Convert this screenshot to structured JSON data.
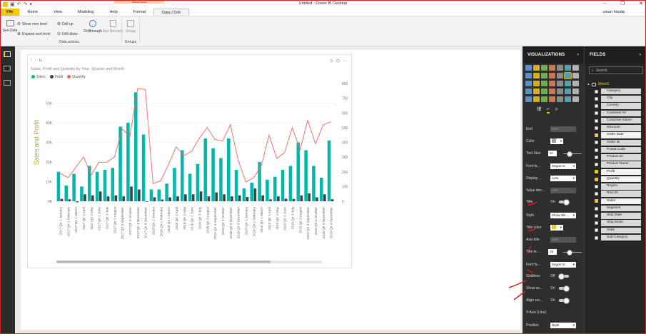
{
  "window": {
    "title": "Untitled - Power BI Desktop",
    "context_tab_group": "Visual tools",
    "user": "uman hooda",
    "controls": [
      "–",
      "❐",
      "✕"
    ]
  },
  "menu": {
    "tabs": [
      {
        "label": "File"
      },
      {
        "label": "Home"
      },
      {
        "label": "View"
      },
      {
        "label": "Modeling"
      },
      {
        "label": "Help"
      },
      {
        "label": "Format"
      },
      {
        "label": "Data / Drill"
      }
    ]
  },
  "ribbon": {
    "see_data": "See Data",
    "show_next_level": "Show next level",
    "expand_next_level": "Expand next level",
    "drill_up": "Drill up",
    "drill_down": "Drill down",
    "drillthrough": "Drillthrough",
    "see_records": "See Records",
    "group": "Group",
    "data_actions_label": "Data actions",
    "groups_label": "Groups"
  },
  "visual": {
    "title": "Sales, Profit and Quantity by Year, Quarter and Month",
    "legend": [
      {
        "name": "Sales",
        "color": "#01b8aa"
      },
      {
        "name": "Profit",
        "color": "#374649"
      },
      {
        "name": "Quantity",
        "color": "#fd625e"
      }
    ],
    "y_axis_title": "Sales and Profit"
  },
  "chart_data": {
    "type": "bar",
    "title": "Sales, Profit and Quantity by Year, Quarter and Month",
    "xlabel": "",
    "ylabel": "Sales and Profit",
    "ylim": [
      0,
      60000
    ],
    "y_ticks": [
      "0K",
      "10K",
      "20K",
      "30K",
      "40K",
      "50K"
    ],
    "y2lim": [
      0,
      800
    ],
    "y2_ticks": [
      "0",
      "100",
      "200",
      "300",
      "400",
      "500",
      "600",
      "700",
      "800"
    ],
    "categories": [
      "2017 Qtr 1 January",
      "2017 Qtr 1 February",
      "2017 Qtr 1 March",
      "2017 Qtr 2 April",
      "2017 Qtr 2 May",
      "2017 Qtr 2 June",
      "2017 Qtr 3 July",
      "2017 Qtr 3 August",
      "2017 Qtr 3 September",
      "2017 Qtr 4 October",
      "2017 Qtr 4 November",
      "2017 Qtr 4 December",
      "2016 Qtr 1 January",
      "2016 Qtr 1 February",
      "2016 Qtr 1 March",
      "2016 Qtr 2 April",
      "2016 Qtr 2 May",
      "2016 Qtr 2 June",
      "2016 Qtr 3 July",
      "2016 Qtr 3 August",
      "2016 Qtr 3 September",
      "2016 Qtr 4 October",
      "2016 Qtr 4 November",
      "2016 Qtr 4 December",
      "2015 Qtr 1 January",
      "2015 Qtr 1 February",
      "2015 Qtr 1 March",
      "2015 Qtr 2 April",
      "2015 Qtr 2 May",
      "2015 Qtr 2 June",
      "2015 Qtr 3 July",
      "2015 Qtr 3 August",
      "2015 Qtr 3 September",
      "2015 Qtr 4 October",
      "2015 Qtr 4 November",
      "2015 Qtr 4 December"
    ],
    "series": [
      {
        "name": "Sales",
        "type": "bar",
        "color": "#01b8aa",
        "values": [
          15000,
          8000,
          14000,
          7500,
          18000,
          15000,
          16000,
          17000,
          38000,
          40000,
          55500,
          34000,
          6000,
          6000,
          9000,
          17000,
          26000,
          14000,
          19000,
          32000,
          27000,
          22000,
          32000,
          16000,
          6500,
          9500,
          20000,
          11000,
          12500,
          16000,
          18000,
          30000,
          26000,
          18000,
          12000,
          31000
        ]
      },
      {
        "name": "Profit",
        "type": "bar",
        "color": "#374649",
        "values": [
          1200,
          1000,
          -500,
          3500,
          3000,
          5000,
          2500,
          3000,
          2500,
          7500,
          6000,
          -300,
          2000,
          900,
          2000,
          2500,
          3500,
          3500,
          5000,
          2500,
          4500,
          3500,
          2500,
          3000,
          2200,
          6500,
          3000,
          1000,
          2500,
          1300,
          1200,
          3000,
          4000,
          2000,
          3500,
          1000
        ]
      },
      {
        "name": "Quantity",
        "type": "line",
        "color": "#fd625e",
        "values": [
          190,
          160,
          230,
          300,
          180,
          265,
          265,
          300,
          490,
          440,
          765,
          760,
          120,
          140,
          250,
          370,
          310,
          340,
          430,
          500,
          420,
          410,
          520,
          280,
          130,
          160,
          240,
          450,
          290,
          330,
          500,
          350,
          550,
          390,
          520,
          540
        ]
      }
    ],
    "grid": true,
    "legend_position": "top-left"
  },
  "viz_pane": {
    "title": "VISUALIZATIONS"
  },
  "format_props": [
    {
      "label": "End",
      "value": "Auto",
      "kind": "box-dis"
    },
    {
      "label": "Color",
      "value": "",
      "kind": "color"
    },
    {
      "label": "Text Size",
      "value": "11",
      "kind": "slider"
    },
    {
      "label": "Font fa...",
      "value": "Segoe UI",
      "kind": "select"
    },
    {
      "label": "Display ...",
      "value": "Auto",
      "kind": "select"
    },
    {
      "label": "Value dec...",
      "value": "Auto",
      "kind": "box-dis"
    },
    {
      "label": "Title",
      "value": "On",
      "kind": "toggle"
    },
    {
      "label": "Style",
      "value": "Show title ...",
      "kind": "select"
    },
    {
      "label": "Title color",
      "value": "",
      "kind": "color-yellow"
    },
    {
      "label": "Axis title",
      "value": "Auto",
      "kind": "box-dis"
    },
    {
      "label": "Title te...",
      "value": "19",
      "kind": "slider"
    },
    {
      "label": "Font fa...",
      "value": "Segoe UI",
      "kind": "select"
    },
    {
      "label": "Gridlines",
      "value": "Off",
      "kind": "toggle-off"
    },
    {
      "label": "Show se...",
      "value": "On",
      "kind": "toggle"
    },
    {
      "label": "Align zer...",
      "value": "On",
      "kind": "toggle"
    },
    {
      "label": "Y-Axis (Line)",
      "value": "",
      "kind": "header"
    },
    {
      "label": "Position",
      "value": "Right",
      "kind": "select"
    }
  ],
  "fields_pane": {
    "title": "FIELDS",
    "search_placeholder": "Search",
    "table": "Sheet1",
    "fields": [
      {
        "name": "Category",
        "checked": false
      },
      {
        "name": "City",
        "checked": false
      },
      {
        "name": "Country",
        "checked": false
      },
      {
        "name": "Customer ID",
        "checked": false
      },
      {
        "name": "Customer Name",
        "checked": false
      },
      {
        "name": "Discount",
        "checked": false
      },
      {
        "name": "Order Date",
        "checked": true
      },
      {
        "name": "Order ID",
        "checked": false
      },
      {
        "name": "Postal Code",
        "checked": false
      },
      {
        "name": "Product ID",
        "checked": false
      },
      {
        "name": "Product Name",
        "checked": false
      },
      {
        "name": "Profit",
        "checked": true
      },
      {
        "name": "Quantity",
        "checked": true
      },
      {
        "name": "Region",
        "checked": false
      },
      {
        "name": "Row ID",
        "checked": false
      },
      {
        "name": "Sales",
        "checked": true
      },
      {
        "name": "Segment",
        "checked": false
      },
      {
        "name": "Ship Date",
        "checked": false
      },
      {
        "name": "Ship Mode",
        "checked": false
      },
      {
        "name": "State",
        "checked": false
      },
      {
        "name": "Sub-Category",
        "checked": false
      }
    ]
  }
}
